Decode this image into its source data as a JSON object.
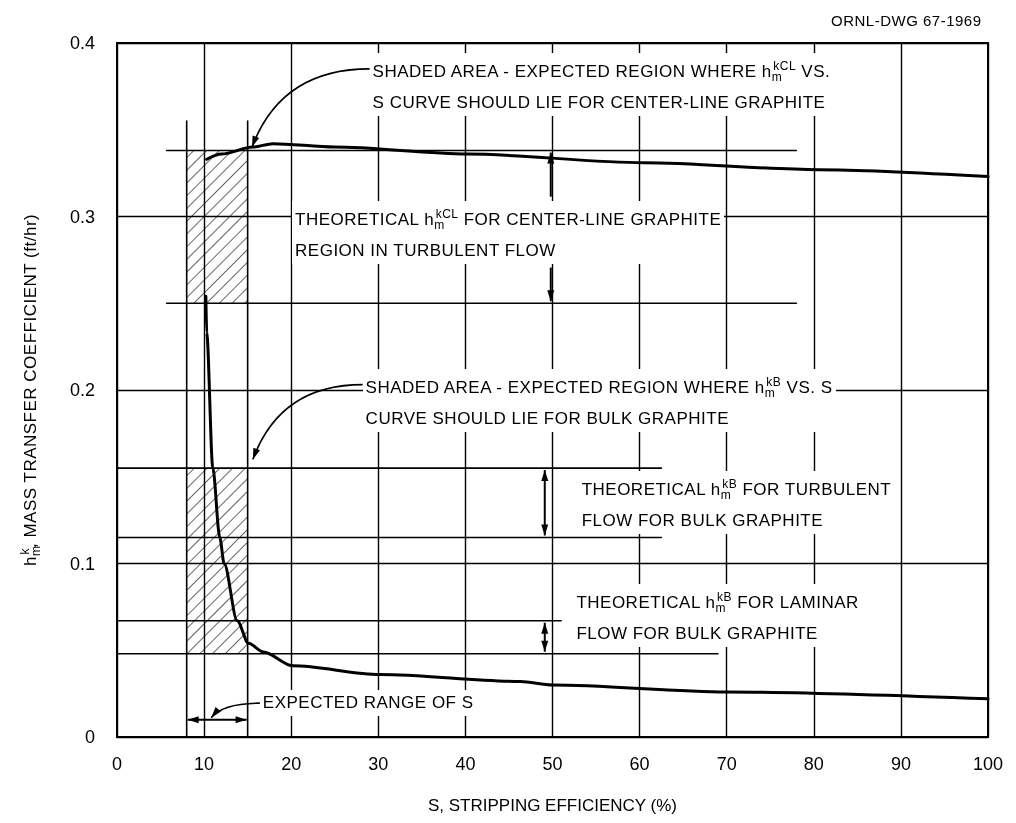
{
  "chart_data": {
    "type": "line",
    "xlabel": "S, STRIPPING EFFICIENCY (%)",
    "ylabel": "h$_{m}$$^{k}$, MASS TRANSFER COEFFICIENT (ft/hr)",
    "xlim": [
      0,
      100
    ],
    "xticks": [
      0,
      10,
      20,
      30,
      40,
      50,
      60,
      70,
      80,
      90,
      100
    ],
    "ylim": [
      0,
      0.4
    ],
    "yticks": [
      0,
      0.1,
      0.2,
      0.3,
      0.4
    ],
    "grid": true,
    "marker": "none",
    "line_style": "solid",
    "series": [
      {
        "color": "#000000",
        "x": [
          10.2,
          10.3,
          11.0,
          11.8,
          12.3,
          13.8,
          15.1,
          16.8,
          20.2,
          30.2,
          46.3,
          50,
          70,
          100
        ],
        "values": [
          0.254,
          0.233,
          0.155,
          0.115,
          0.1,
          0.067,
          0.054,
          0.049,
          0.041,
          0.036,
          0.032,
          0.03,
          0.026,
          0.022
        ]
      },
      {
        "color": "#000000",
        "x": [
          10.3,
          12,
          15.6,
          17.9,
          25,
          40.2,
          60.5,
          80.5,
          100
        ],
        "values": [
          0.333,
          0.336,
          0.34,
          0.342,
          0.34,
          0.336,
          0.331,
          0.327,
          0.323
        ]
      },
      {
        "color": "#000000",
        "x": [
          5.7,
          78
        ],
        "values": [
          0.338,
          0.338
        ]
      },
      {
        "color": "#000000",
        "x": [
          5.7,
          78
        ],
        "values": [
          0.25,
          0.25
        ]
      },
      {
        "color": "#000000",
        "x": [
          0,
          62.5
        ],
        "values": [
          0.155,
          0.155
        ]
      },
      {
        "color": "#000000",
        "x": [
          0,
          62.5
        ],
        "values": [
          0.115,
          0.115
        ]
      },
      {
        "color": "#000000",
        "x": [
          0,
          51
        ],
        "values": [
          0.067,
          0.067
        ]
      },
      {
        "color": "#000000",
        "x": [
          0,
          69
        ],
        "values": [
          0.048,
          0.048
        ]
      },
      {
        "color": "#000000",
        "x": [
          8,
          8
        ],
        "values": [
          0,
          0.355
        ]
      },
      {
        "color": "#000000",
        "x": [
          15,
          15
        ],
        "values": [
          0,
          0.355
        ]
      }
    ],
    "annotations": [
      {
        "text": "SHADED AREA - EXPECTED REGION WHERE h$_{m}$$^{kCL}$ VS.\nS CURVE SHOULD LIE FOR CENTER-LINE GRAPHITE",
        "x": 15.5,
        "y": 0.34
      },
      {
        "text": "THEORETICAL h$_{m}$$^{kCL}$ FOR CENTER-LINE GRAPHITE\nREGION IN TURBULENT FLOW",
        "x": 49.8,
        "y": 0.338
      },
      "SHADED AREA - EXPECTED REGION WHERE h$_{m}$$^{kB}$ VS. S\nCURVE SHOULD LIE FOR BULK GRAPHITE",
      "THEORETICAL h$_{m}$$^{kB}$ FOR TURBULENT\nFLOW FOR BULK GRAPHITE",
      "THEORETICAL h$_{m}$$^{kB}$ FOR LAMINAR\nFLOW FOR BULK GRAPHITE",
      {
        "text": "EXPECTED RANGE OF S",
        "x": 8,
        "y": 0.01
      },
      "ORNL-DWG 67-1969"
    ]
  }
}
